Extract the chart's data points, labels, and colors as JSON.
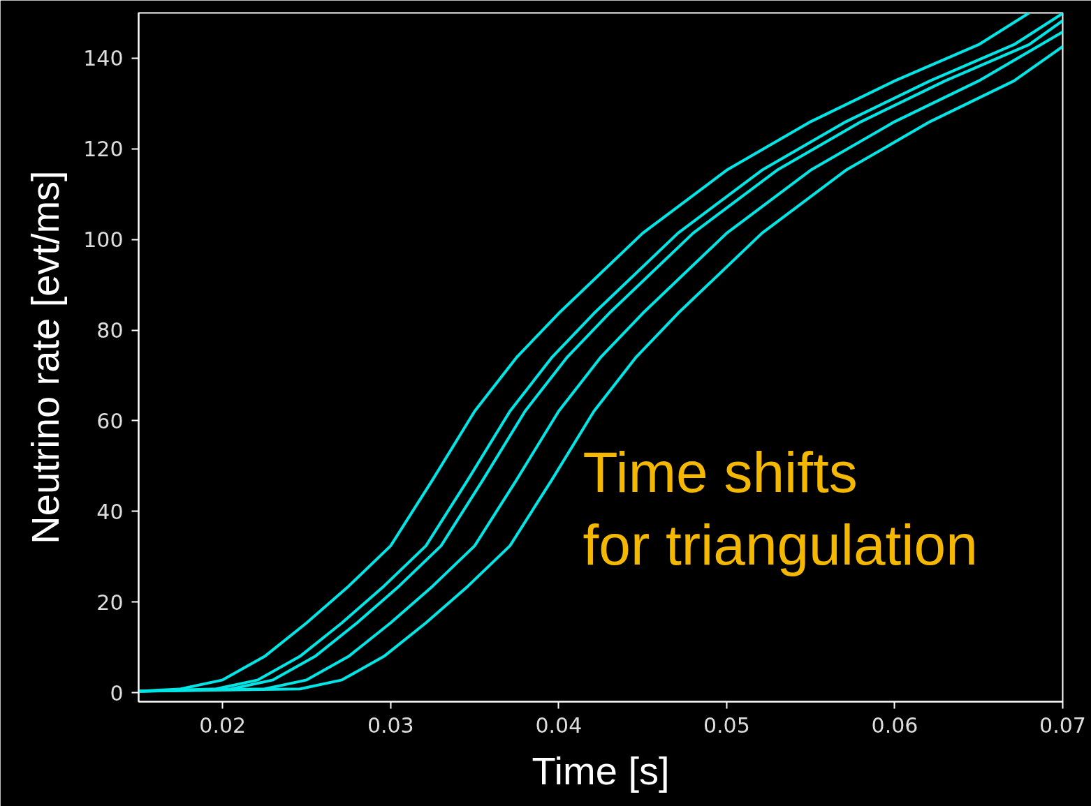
{
  "chart_data": {
    "type": "line",
    "xlabel": "Time [s]",
    "ylabel": "Neutrino rate [evt/ms]",
    "xlim": [
      0.015,
      0.07
    ],
    "ylim": [
      -2,
      150
    ],
    "xticks": [
      {
        "value": 0.02,
        "label": "0.02"
      },
      {
        "value": 0.03,
        "label": "0.03"
      },
      {
        "value": 0.04,
        "label": "0.04"
      },
      {
        "value": 0.05,
        "label": "0.05"
      },
      {
        "value": 0.06,
        "label": "0.06"
      },
      {
        "value": 0.07,
        "label": "0.07"
      }
    ],
    "yticks": [
      0,
      20,
      40,
      60,
      80,
      100,
      120,
      140
    ],
    "grid": false,
    "marker": "none",
    "line_style": "solid",
    "annotations": [
      "Time shifts\nfor triangulation"
    ],
    "series": [
      {
        "color": "#00e5e5",
        "x": [
          0.015,
          0.0175,
          0.02,
          0.0225,
          0.025,
          0.0275,
          0.03,
          0.0325,
          0.035,
          0.0375,
          0.04,
          0.045,
          0.05,
          0.055,
          0.06,
          0.065,
          0.068
        ],
        "values": [
          0.3,
          0.8,
          2.8,
          8,
          15.4,
          23.5,
          32.4,
          47,
          62.1,
          74,
          83.7,
          101.4,
          115.3,
          126,
          135,
          143,
          150
        ]
      },
      {
        "color": "#00e5e5",
        "x": [
          0.015,
          0.0196,
          0.0221,
          0.0246,
          0.0271,
          0.0296,
          0.0321,
          0.0346,
          0.0371,
          0.0396,
          0.0421,
          0.0471,
          0.0521,
          0.0571,
          0.0621,
          0.0671,
          0.07
        ],
        "values": [
          0.3,
          0.8,
          2.8,
          8,
          15.4,
          23.5,
          32.4,
          47,
          62.1,
          74,
          83.7,
          101.4,
          115.3,
          126,
          135,
          143,
          149.9
        ]
      },
      {
        "color": "#00e5e5",
        "x": [
          0.015,
          0.0205,
          0.023,
          0.0255,
          0.028,
          0.0305,
          0.033,
          0.0355,
          0.038,
          0.0405,
          0.043,
          0.048,
          0.053,
          0.058,
          0.063,
          0.068,
          0.07
        ],
        "values": [
          0.3,
          0.8,
          2.8,
          8,
          15.4,
          23.5,
          32.4,
          47,
          62.1,
          74,
          83.7,
          101.4,
          115.3,
          126,
          135,
          143,
          148.3
        ]
      },
      {
        "color": "#00e5e5",
        "x": [
          0.015,
          0.0225,
          0.025,
          0.0275,
          0.03,
          0.0325,
          0.035,
          0.0375,
          0.04,
          0.0425,
          0.045,
          0.05,
          0.055,
          0.06,
          0.065,
          0.07
        ],
        "values": [
          0.3,
          0.8,
          2.8,
          8,
          15.4,
          23.5,
          32.4,
          47,
          62.1,
          74,
          83.7,
          101.4,
          115.3,
          126,
          135,
          145.8
        ]
      },
      {
        "color": "#00e5e5",
        "x": [
          0.015,
          0.0246,
          0.0271,
          0.0296,
          0.0321,
          0.0346,
          0.0371,
          0.0396,
          0.0421,
          0.0446,
          0.0471,
          0.0521,
          0.0571,
          0.0621,
          0.0671,
          0.07
        ],
        "values": [
          0.3,
          0.8,
          2.8,
          8,
          15.4,
          23.5,
          32.4,
          47,
          62.1,
          74,
          83.7,
          101.4,
          115.3,
          126,
          135,
          142.6
        ]
      }
    ]
  }
}
